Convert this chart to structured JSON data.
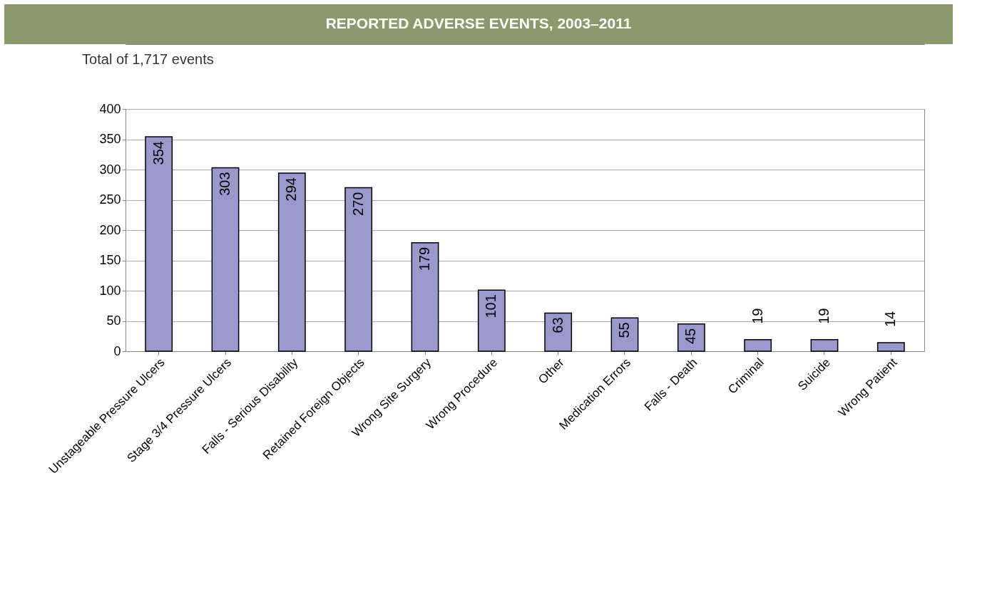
{
  "chart_data": {
    "type": "bar",
    "title": "REPORTED ADVERSE EVENTS, 2003–2011",
    "subtitle": "Total of 1,717 events",
    "categories": [
      "Unstageable Pressure Ulcers",
      "Stage 3/4 Pressure Ulcers",
      "Falls - Serious Disability",
      "Retained Foreign Objects",
      "Wrong Site Surgery",
      "Wrong Procedure",
      "Other",
      "Medication Errors",
      "Falls - Death",
      "Criminal",
      "Suicide",
      "Wrong Patient"
    ],
    "values": [
      354,
      303,
      294,
      270,
      179,
      101,
      63,
      55,
      45,
      19,
      19,
      14
    ],
    "color": "#9999cc",
    "ylim": [
      0,
      400
    ],
    "yticks": [
      0,
      50,
      100,
      150,
      200,
      250,
      300,
      350,
      400
    ],
    "grid": "y",
    "data_labels": true
  }
}
